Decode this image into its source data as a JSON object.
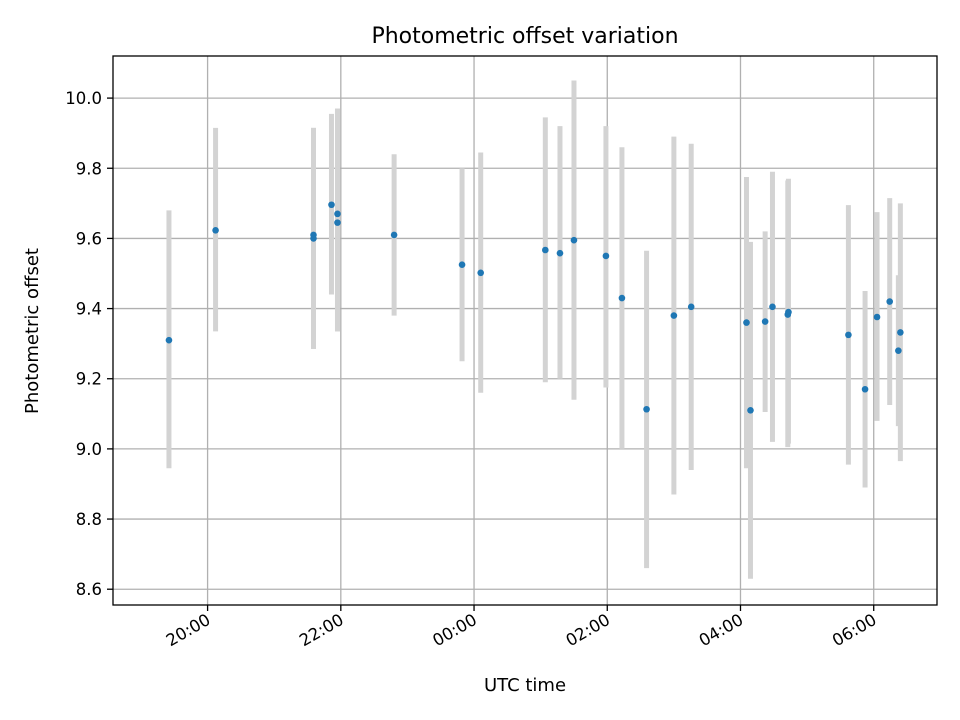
{
  "chart_data": {
    "type": "scatter",
    "title": "Photometric offset variation",
    "xlabel": "UTC time",
    "ylabel": "Photometric offset",
    "x_ticks": [
      "20:00",
      "22:00",
      "00:00",
      "02:00",
      "04:00",
      "06:00"
    ],
    "x_tick_hours": [
      20,
      22,
      24,
      26,
      28,
      30
    ],
    "xlim_hours": [
      18.58,
      30.95
    ],
    "ylim": [
      8.555,
      10.12
    ],
    "y_ticks": [
      8.6,
      8.8,
      9.0,
      9.2,
      9.4,
      9.6,
      9.8,
      10.0
    ],
    "y_tick_labels": [
      "8.6",
      "8.8",
      "9.0",
      "9.2",
      "9.4",
      "9.6",
      "9.8",
      "10.0"
    ],
    "grid": true,
    "colors": {
      "point": "#1f77b4",
      "errorbar": "#d3d3d3",
      "grid": "#b0b0b0"
    },
    "points": [
      {
        "time": "19:25",
        "hour": 19.42,
        "y": 9.31,
        "ylow": 8.945,
        "yhigh": 9.68
      },
      {
        "time": "20:07",
        "hour": 20.12,
        "y": 9.623,
        "ylow": 9.335,
        "yhigh": 9.915
      },
      {
        "time": "21:35",
        "hour": 21.59,
        "y": 9.61,
        "ylow": 9.285,
        "yhigh": 9.915
      },
      {
        "time": "21:35",
        "hour": 21.59,
        "y": 9.6,
        "ylow": 9.285,
        "yhigh": 9.915
      },
      {
        "time": "21:51",
        "hour": 21.86,
        "y": 9.696,
        "ylow": 9.44,
        "yhigh": 9.955
      },
      {
        "time": "21:57",
        "hour": 21.95,
        "y": 9.67,
        "ylow": 9.335,
        "yhigh": 9.97
      },
      {
        "time": "21:57",
        "hour": 21.95,
        "y": 9.645,
        "ylow": 9.335,
        "yhigh": 9.97
      },
      {
        "time": "22:48",
        "hour": 22.8,
        "y": 9.61,
        "ylow": 9.38,
        "yhigh": 9.84
      },
      {
        "time": "23:49",
        "hour": 23.82,
        "y": 9.525,
        "ylow": 9.25,
        "yhigh": 9.8
      },
      {
        "time": "00:06",
        "hour": 24.1,
        "y": 9.502,
        "ylow": 9.16,
        "yhigh": 9.845
      },
      {
        "time": "01:04",
        "hour": 25.07,
        "y": 9.567,
        "ylow": 9.19,
        "yhigh": 9.945
      },
      {
        "time": "01:17",
        "hour": 25.29,
        "y": 9.558,
        "ylow": 9.2,
        "yhigh": 9.92
      },
      {
        "time": "01:30",
        "hour": 25.5,
        "y": 9.595,
        "ylow": 9.14,
        "yhigh": 10.05
      },
      {
        "time": "01:59",
        "hour": 25.98,
        "y": 9.55,
        "ylow": 9.175,
        "yhigh": 9.92
      },
      {
        "time": "02:13",
        "hour": 26.22,
        "y": 9.43,
        "ylow": 9.0,
        "yhigh": 9.86
      },
      {
        "time": "02:35",
        "hour": 26.59,
        "y": 9.113,
        "ylow": 8.66,
        "yhigh": 9.565
      },
      {
        "time": "03:00",
        "hour": 27.0,
        "y": 9.38,
        "ylow": 8.87,
        "yhigh": 9.89
      },
      {
        "time": "03:15",
        "hour": 27.26,
        "y": 9.405,
        "ylow": 8.94,
        "yhigh": 9.87
      },
      {
        "time": "04:05",
        "hour": 28.09,
        "y": 9.36,
        "ylow": 8.945,
        "yhigh": 9.775
      },
      {
        "time": "04:09",
        "hour": 28.15,
        "y": 9.11,
        "ylow": 8.63,
        "yhigh": 9.59
      },
      {
        "time": "04:22",
        "hour": 28.37,
        "y": 9.363,
        "ylow": 9.105,
        "yhigh": 9.62
      },
      {
        "time": "04:29",
        "hour": 28.48,
        "y": 9.405,
        "ylow": 9.02,
        "yhigh": 9.79
      },
      {
        "time": "04:43",
        "hour": 28.71,
        "y": 9.383,
        "ylow": 9.005,
        "yhigh": 9.765
      },
      {
        "time": "04:43",
        "hour": 28.72,
        "y": 9.39,
        "ylow": 9.015,
        "yhigh": 9.77
      },
      {
        "time": "05:37",
        "hour": 29.62,
        "y": 9.325,
        "ylow": 8.955,
        "yhigh": 9.695
      },
      {
        "time": "05:52",
        "hour": 29.87,
        "y": 9.17,
        "ylow": 8.89,
        "yhigh": 9.45
      },
      {
        "time": "06:03",
        "hour": 30.05,
        "y": 9.376,
        "ylow": 9.08,
        "yhigh": 9.675
      },
      {
        "time": "06:14",
        "hour": 30.24,
        "y": 9.42,
        "ylow": 9.125,
        "yhigh": 9.715
      },
      {
        "time": "06:22",
        "hour": 30.37,
        "y": 9.28,
        "ylow": 9.065,
        "yhigh": 9.495
      },
      {
        "time": "06:24",
        "hour": 30.4,
        "y": 9.332,
        "ylow": 8.965,
        "yhigh": 9.7
      }
    ]
  }
}
